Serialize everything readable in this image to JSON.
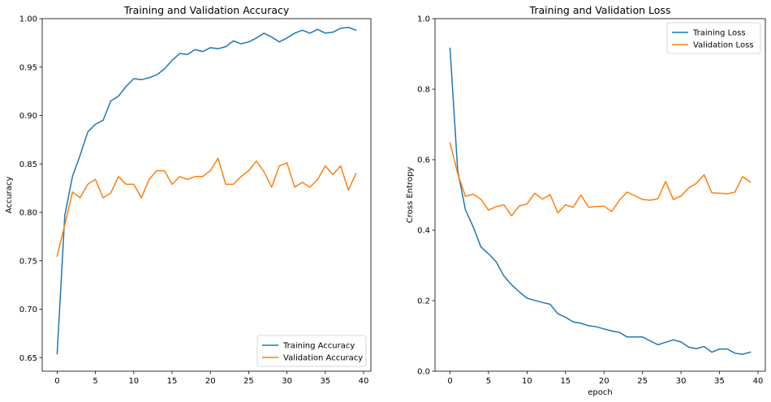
{
  "chart_data": [
    {
      "type": "line",
      "title": "Training and Validation Accuracy",
      "xlabel": "",
      "ylabel": "Accuracy",
      "xlim": [
        -1.95,
        40.95
      ],
      "ylim": [
        0.636,
        1.0
      ],
      "xticks": [
        0,
        5,
        10,
        15,
        20,
        25,
        30,
        35,
        40
      ],
      "yticks": [
        0.65,
        0.7,
        0.75,
        0.8,
        0.85,
        0.9,
        0.95,
        1.0
      ],
      "xtick_labels": [
        "0",
        "5",
        "10",
        "15",
        "20",
        "25",
        "30",
        "35",
        "40"
      ],
      "ytick_labels": [
        "0.65",
        "0.70",
        "0.75",
        "0.80",
        "0.85",
        "0.90",
        "0.95",
        "1.00"
      ],
      "legend_position": "lower-right",
      "grid": false,
      "x": [
        0,
        1,
        2,
        3,
        4,
        5,
        6,
        7,
        8,
        9,
        10,
        11,
        12,
        13,
        14,
        15,
        16,
        17,
        18,
        19,
        20,
        21,
        22,
        23,
        24,
        25,
        26,
        27,
        28,
        29,
        30,
        31,
        32,
        33,
        34,
        35,
        36,
        37,
        38,
        39
      ],
      "series": [
        {
          "name": "Training Accuracy",
          "color": "#1f77b4",
          "values": [
            0.654,
            0.797,
            0.837,
            0.859,
            0.883,
            0.891,
            0.895,
            0.915,
            0.92,
            0.93,
            0.938,
            0.937,
            0.939,
            0.942,
            0.948,
            0.957,
            0.964,
            0.963,
            0.968,
            0.966,
            0.97,
            0.969,
            0.971,
            0.977,
            0.974,
            0.976,
            0.98,
            0.985,
            0.981,
            0.976,
            0.98,
            0.985,
            0.988,
            0.985,
            0.989,
            0.985,
            0.986,
            0.99,
            0.991,
            0.988
          ]
        },
        {
          "name": "Validation Accuracy",
          "color": "#ff7f0e",
          "values": [
            0.755,
            0.787,
            0.821,
            0.815,
            0.829,
            0.834,
            0.815,
            0.82,
            0.837,
            0.829,
            0.829,
            0.815,
            0.834,
            0.843,
            0.843,
            0.829,
            0.837,
            0.834,
            0.837,
            0.837,
            0.843,
            0.856,
            0.829,
            0.829,
            0.837,
            0.843,
            0.853,
            0.842,
            0.826,
            0.848,
            0.851,
            0.826,
            0.831,
            0.826,
            0.834,
            0.848,
            0.839,
            0.848,
            0.823,
            0.84
          ]
        }
      ]
    },
    {
      "type": "line",
      "title": "Training and Validation Loss",
      "xlabel": "epoch",
      "ylabel": "Cross Entropy",
      "xlim": [
        -1.95,
        40.95
      ],
      "ylim": [
        0.0,
        1.0
      ],
      "xticks": [
        0,
        5,
        10,
        15,
        20,
        25,
        30,
        35,
        40
      ],
      "yticks": [
        0.0,
        0.2,
        0.4,
        0.6,
        0.8,
        1.0
      ],
      "xtick_labels": [
        "0",
        "5",
        "10",
        "15",
        "20",
        "25",
        "30",
        "35",
        "40"
      ],
      "ytick_labels": [
        "0.0",
        "0.2",
        "0.4",
        "0.6",
        "0.8",
        "1.0"
      ],
      "legend_position": "upper-right",
      "grid": false,
      "x": [
        0,
        1,
        2,
        3,
        4,
        5,
        6,
        7,
        8,
        9,
        10,
        11,
        12,
        13,
        14,
        15,
        16,
        17,
        18,
        19,
        20,
        21,
        22,
        23,
        24,
        25,
        26,
        27,
        28,
        29,
        30,
        31,
        32,
        33,
        34,
        35,
        36,
        37,
        38,
        39
      ],
      "series": [
        {
          "name": "Training Loss",
          "color": "#1f77b4",
          "values": [
            0.916,
            0.568,
            0.458,
            0.41,
            0.353,
            0.333,
            0.31,
            0.27,
            0.245,
            0.225,
            0.207,
            0.201,
            0.195,
            0.19,
            0.163,
            0.153,
            0.14,
            0.136,
            0.129,
            0.126,
            0.12,
            0.114,
            0.11,
            0.097,
            0.097,
            0.097,
            0.086,
            0.075,
            0.082,
            0.089,
            0.083,
            0.068,
            0.064,
            0.07,
            0.054,
            0.063,
            0.063,
            0.051,
            0.048,
            0.054
          ]
        },
        {
          "name": "Validation Loss",
          "color": "#ff7f0e",
          "values": [
            0.648,
            0.56,
            0.496,
            0.502,
            0.488,
            0.457,
            0.467,
            0.472,
            0.441,
            0.469,
            0.474,
            0.505,
            0.488,
            0.501,
            0.449,
            0.472,
            0.465,
            0.5,
            0.465,
            0.467,
            0.468,
            0.453,
            0.485,
            0.508,
            0.498,
            0.487,
            0.485,
            0.489,
            0.538,
            0.487,
            0.497,
            0.52,
            0.533,
            0.557,
            0.506,
            0.505,
            0.503,
            0.508,
            0.552,
            0.536
          ]
        }
      ]
    }
  ]
}
